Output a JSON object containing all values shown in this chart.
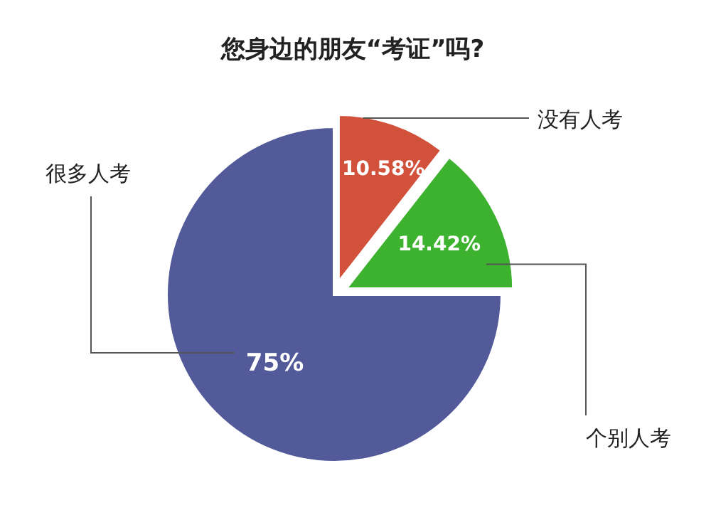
{
  "chart_data": {
    "type": "pie",
    "title": "您身边的朋友“考证”吗?",
    "categories": [
      "没有人考",
      "个别人考",
      "很多人考"
    ],
    "values": [
      10.58,
      14.42,
      75
    ],
    "value_labels": [
      "10.58%",
      "14.42%",
      "75%"
    ],
    "colors": [
      "#d2513b",
      "#3db22e",
      "#525a99"
    ]
  }
}
